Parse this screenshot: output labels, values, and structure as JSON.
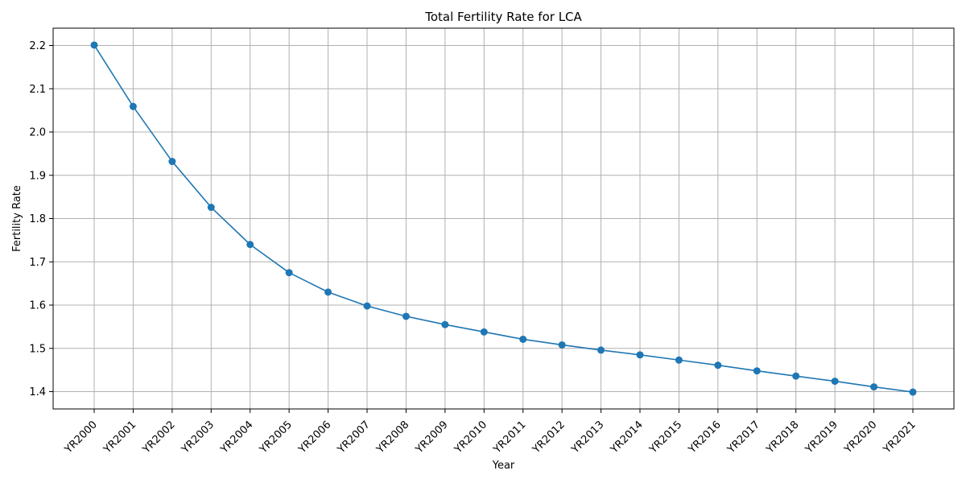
{
  "chart_data": {
    "type": "line",
    "title": "Total Fertility Rate for LCA",
    "xlabel": "Year",
    "ylabel": "Fertility Rate",
    "categories": [
      "YR2000",
      "YR2001",
      "YR2002",
      "YR2003",
      "YR2004",
      "YR2005",
      "YR2006",
      "YR2007",
      "YR2008",
      "YR2009",
      "YR2010",
      "YR2011",
      "YR2012",
      "YR2013",
      "YR2014",
      "YR2015",
      "YR2016",
      "YR2017",
      "YR2018",
      "YR2019",
      "YR2020",
      "YR2021"
    ],
    "series": [
      {
        "values": [
          2.201,
          2.059,
          1.932,
          1.826,
          1.74,
          1.675,
          1.63,
          1.598,
          1.574,
          1.555,
          1.538,
          1.521,
          1.508,
          1.496,
          1.485,
          1.473,
          1.461,
          1.448,
          1.436,
          1.424,
          1.411,
          1.399
        ],
        "color": "#1f77b4",
        "marker": "circle"
      }
    ],
    "yticks": [
      "1.4",
      "1.5",
      "1.6",
      "1.7",
      "1.8",
      "1.9",
      "2.0",
      "2.1",
      "2.2"
    ],
    "ylim": [
      1.36,
      2.24
    ],
    "grid": true,
    "legend": "none",
    "x_tick_rotation": 45
  }
}
